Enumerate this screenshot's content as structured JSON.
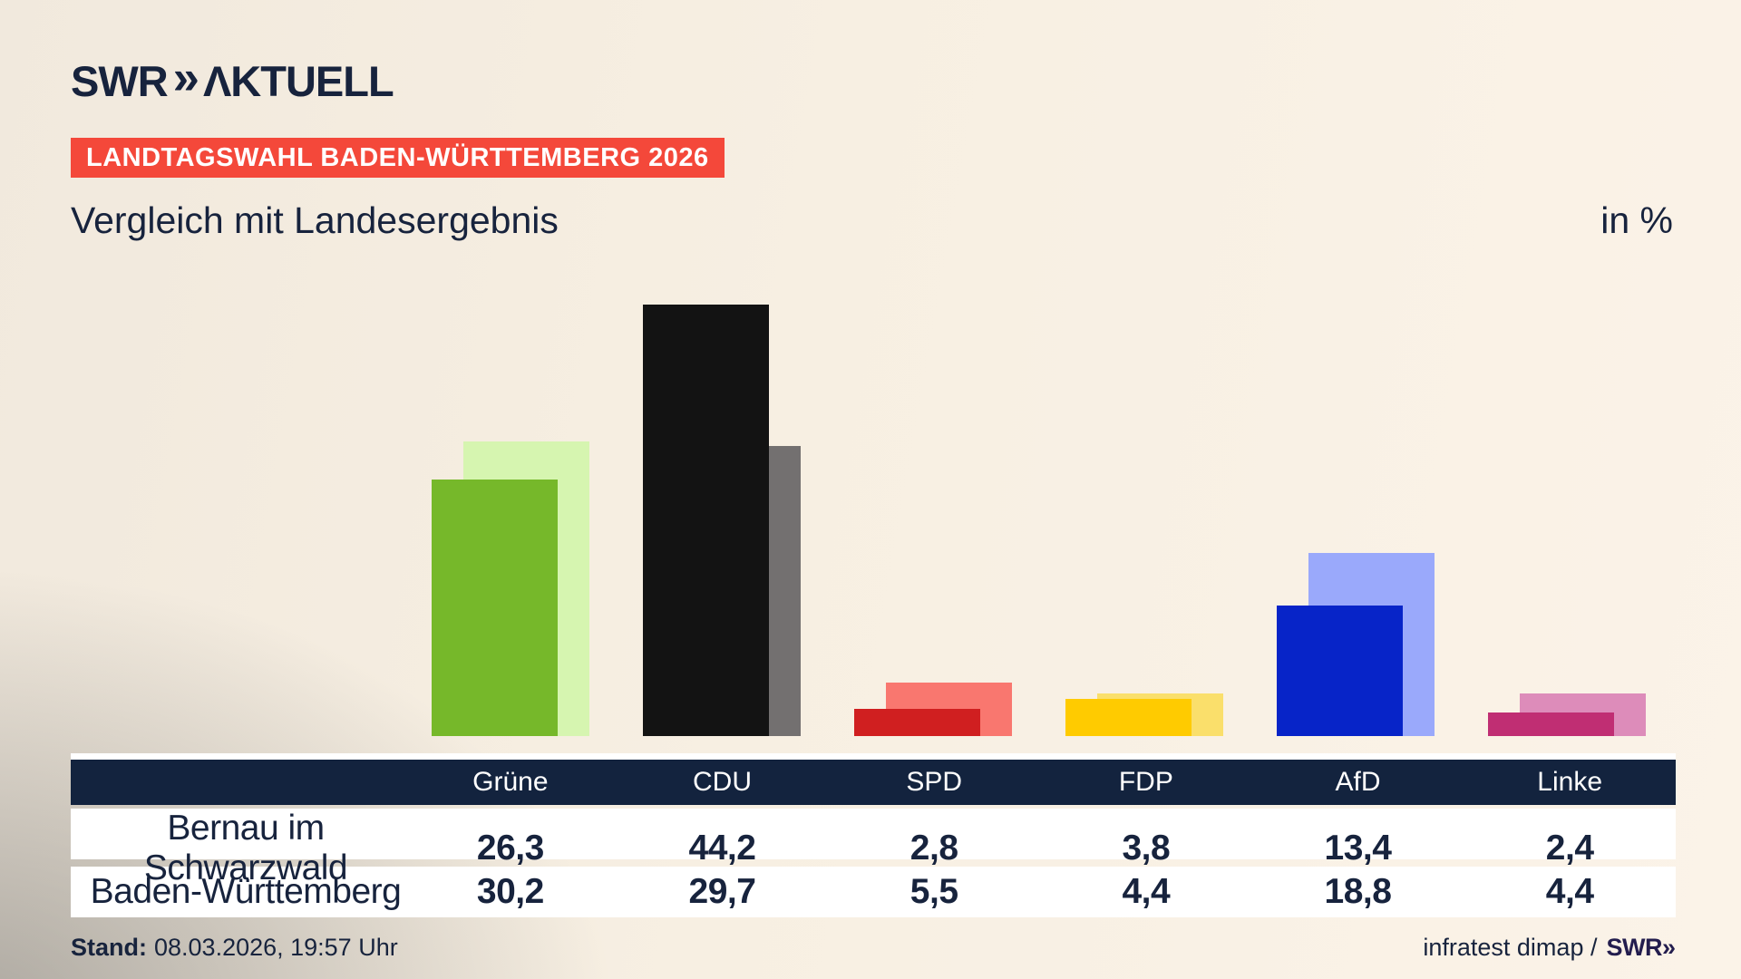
{
  "header": {
    "logo_main": "SWR",
    "logo_chevrons": "»",
    "logo_suffix": "ΛKTUELL",
    "badge": "LANDTAGSWAHL BADEN-WÜRTTEMBERG 2026",
    "title": "Vergleich mit Landesergebnis",
    "unit_label": "in %"
  },
  "chart_data": {
    "type": "bar",
    "title": "Vergleich mit Landesergebnis",
    "unit": "in %",
    "grid": false,
    "ylim": [
      0,
      46
    ],
    "categories": [
      "Grüne",
      "CDU",
      "SPD",
      "FDP",
      "AfD",
      "Linke"
    ],
    "series": [
      {
        "name": "Bernau im Schwarzwald",
        "role": "front",
        "values": [
          26.3,
          44.2,
          2.8,
          3.8,
          13.4,
          2.4
        ],
        "labels": [
          "26,3",
          "44,2",
          "2,8",
          "3,8",
          "13,4",
          "2,4"
        ],
        "colors": [
          "#76b82a",
          "#131313",
          "#d01f20",
          "#ffcb00",
          "#0724c8",
          "#c02e73"
        ]
      },
      {
        "name": "Baden-Württemberg",
        "role": "back",
        "values": [
          30.2,
          29.7,
          5.5,
          4.4,
          18.8,
          4.4
        ],
        "labels": [
          "30,2",
          "29,7",
          "5,5",
          "4,4",
          "18,8",
          "4,4"
        ],
        "colors": [
          "#d6f5b0",
          "#737070",
          "#f9776f",
          "#fadf6b",
          "#9aa9fb",
          "#dd8cba"
        ]
      }
    ]
  },
  "table": {
    "corner_label": "",
    "row1_label": "Bernau im Schwarzwald",
    "row2_label": "Baden-Württemberg"
  },
  "footer": {
    "stand_label": "Stand:",
    "stand_value": "08.03.2026, 19:57 Uhr",
    "source_text": "infratest dimap /",
    "source_brand": "SWR",
    "source_chevrons": "»"
  },
  "colors": {
    "navy": "#13233e",
    "text_navy": "#17233d",
    "badge_red": "#f4483a",
    "background_cream": "#f7efe2",
    "row_white": "#ffffff"
  }
}
